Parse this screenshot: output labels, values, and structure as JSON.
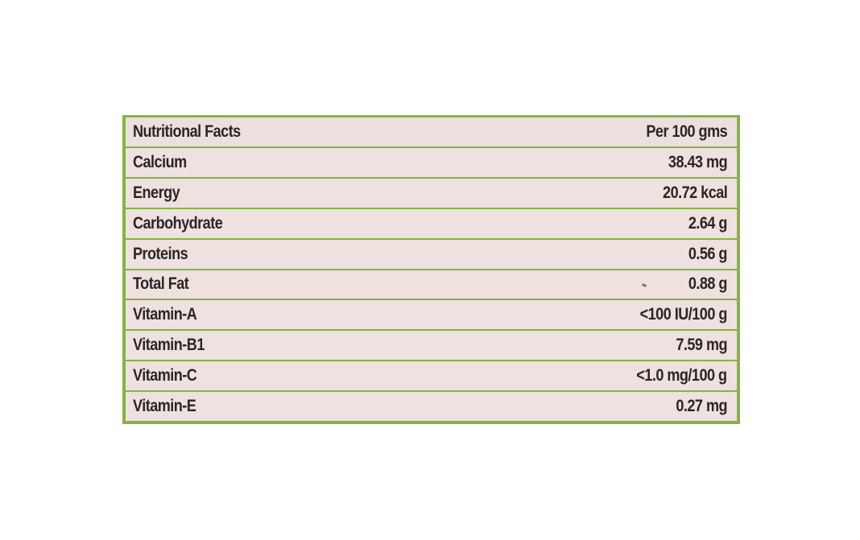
{
  "header": {
    "label": "Nutritional Facts",
    "value": "Per 100 gms"
  },
  "rows": [
    {
      "label": "Calcium",
      "value": "38.43 mg"
    },
    {
      "label": "Energy",
      "value": "20.72 kcal"
    },
    {
      "label": "Carbohydrate",
      "value": "2.64 g"
    },
    {
      "label": "Proteins",
      "value": "0.56 g"
    },
    {
      "label": "Total Fat",
      "value": "0.88 g"
    },
    {
      "label": "Vitamin-A",
      "value": "<100 IU/100 g"
    },
    {
      "label": "Vitamin-B1",
      "value": "7.59 mg"
    },
    {
      "label": "Vitamin-C",
      "value": "<1.0 mg/100 g"
    },
    {
      "label": "Vitamin-E",
      "value": "0.27 mg"
    }
  ],
  "colors": {
    "border_green": "#85b53c",
    "row_background": "#eee1e0",
    "text": "#2a2626"
  }
}
